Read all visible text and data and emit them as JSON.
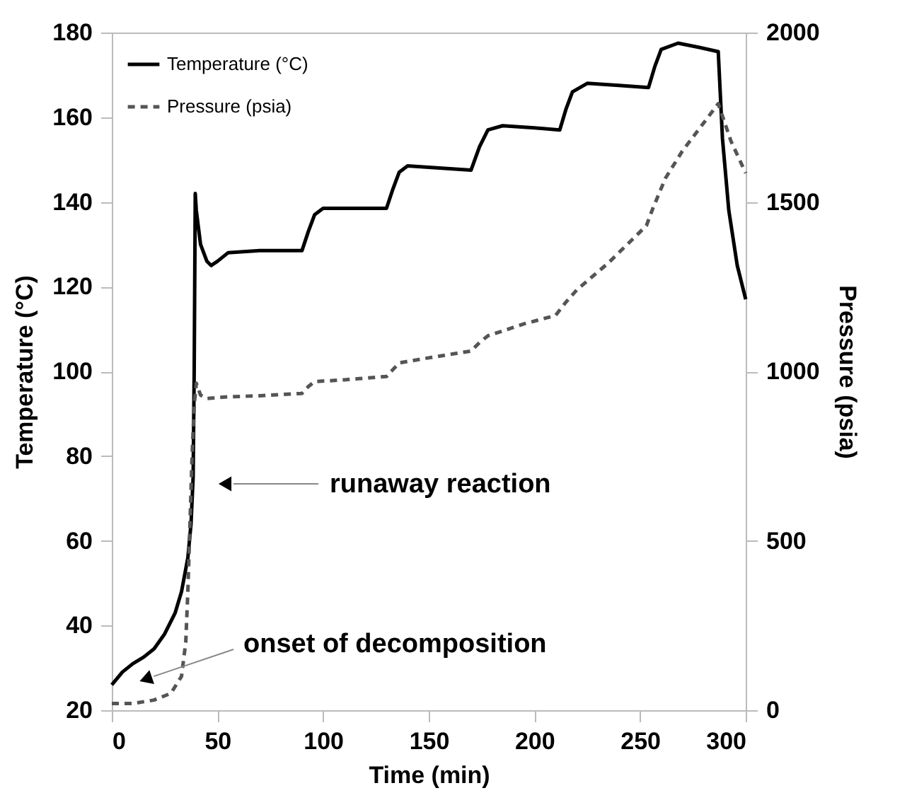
{
  "chart_data": {
    "type": "line",
    "xlabel": "Time (min)",
    "ylabel": "Temperature (°C)",
    "y2label": "Pressure (psia)",
    "xlim": [
      0,
      300
    ],
    "xticks": [
      0,
      50,
      100,
      150,
      200,
      250,
      300
    ],
    "ylim": [
      20,
      180
    ],
    "yticks": [
      20,
      40,
      60,
      80,
      100,
      120,
      140,
      160,
      180
    ],
    "y2lim": [
      0,
      2000
    ],
    "y2ticks": [
      0,
      500,
      {
        "value": 1000,
        "label": "1000"
      },
      {
        "value": 1500,
        "label": "1500"
      },
      {
        "value": 2000,
        "label": "2000"
      }
    ],
    "grid": false,
    "legend": "top left",
    "series": [
      {
        "name": "Temperature (°C)",
        "color": "#000000",
        "line_style": "solid",
        "x": [
          0,
          5,
          10,
          15,
          20,
          25,
          30,
          33,
          36,
          37.5,
          38.5,
          39,
          39.5,
          40,
          42,
          45,
          47,
          50,
          55,
          70,
          90,
          93,
          96,
          100,
          115,
          130,
          133,
          136,
          140,
          155,
          170,
          174,
          178,
          185,
          200,
          212,
          215,
          218,
          225,
          240,
          254,
          257,
          260,
          268,
          278,
          287,
          289,
          292,
          296,
          300
        ],
        "values": [
          26,
          29,
          31,
          32.5,
          34.5,
          38,
          43,
          48,
          56,
          64,
          75,
          100,
          142,
          138,
          130,
          126,
          125,
          126,
          128,
          128.5,
          128.5,
          133,
          137,
          138.5,
          138.5,
          138.5,
          143,
          147,
          148.5,
          148,
          147.5,
          153,
          157,
          158,
          157.5,
          157,
          162,
          166,
          168,
          167.5,
          167,
          172,
          176,
          177.5,
          176.5,
          175.5,
          155,
          138,
          125,
          117
        ]
      },
      {
        "name": "Pressure (psia)",
        "color": "#555555",
        "line_style": "dashed",
        "axis": "y2",
        "x": [
          0,
          10,
          20,
          28,
          33,
          35,
          36,
          37,
          38,
          39,
          40,
          42,
          45,
          55,
          70,
          90,
          93,
          96,
          110,
          130,
          133,
          136,
          150,
          170,
          174,
          178,
          195,
          210,
          215,
          220,
          235,
          253,
          256,
          262,
          270,
          287,
          293,
          300
        ],
        "values": [
          20,
          20,
          30,
          50,
          100,
          200,
          350,
          550,
          750,
          900,
          965,
          930,
          920,
          925,
          928,
          935,
          955,
          970,
          975,
          985,
          1005,
          1025,
          1040,
          1060,
          1085,
          1105,
          1140,
          1165,
          1205,
          1240,
          1320,
          1430,
          1480,
          1570,
          1650,
          1790,
          1680,
          1585
        ]
      }
    ],
    "annotations": [
      "runaway reaction",
      "onset of decomposition"
    ]
  }
}
